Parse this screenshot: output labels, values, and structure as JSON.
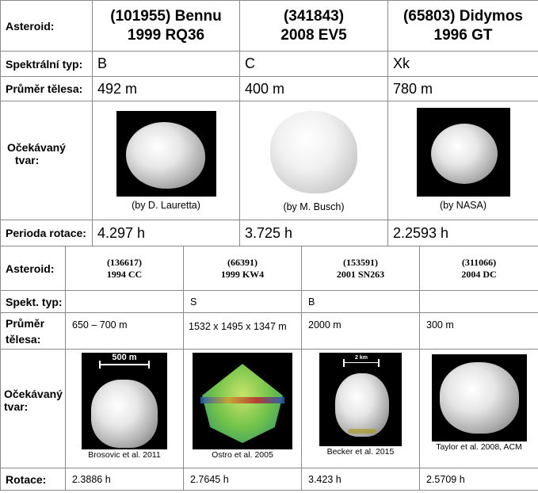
{
  "top_table": {
    "row_labels": {
      "asteroid": "Asteroid:",
      "spectral": "Spektrální typ:",
      "diameter": "Průměr tělesa:",
      "shape": [
        "Očekávaný",
        "tvar:"
      ],
      "rotation": "Perioda rotace:"
    },
    "asteroids": [
      {
        "number": "(101955) Bennu",
        "designation": "1999 RQ36",
        "spectral": "B",
        "diameter": "492 m",
        "credit": "(by D. Lauretta)",
        "rotation": "4.297 h"
      },
      {
        "number": "(341843)",
        "designation": "2008 EV5",
        "spectral": "C",
        "diameter": "400 m",
        "credit": "(by M. Busch)",
        "rotation": "3.725 h"
      },
      {
        "number": "(65803) Didymos",
        "designation": "1996 GT",
        "spectral": "Xk",
        "diameter": "780 m",
        "credit": "(by NASA)",
        "rotation": "2.2593 h"
      }
    ]
  },
  "bottom_table": {
    "row_labels": {
      "asteroid": "Asteroid:",
      "spectral": "Spekt. typ:",
      "diameter": [
        "Průměr",
        "tělesa:"
      ],
      "shape": [
        "Očekávaný",
        "tvar:"
      ],
      "rotation": "Rotace:"
    },
    "asteroids": [
      {
        "number": "(136617)",
        "designation": "1994 CC",
        "spectral": "",
        "diameter": "650 – 700 m",
        "credit": "Brosovic et al. 2011",
        "scale": "500 m",
        "rotation": "2.3886 h"
      },
      {
        "number": "(66391)",
        "designation": "1999 KW4",
        "spectral": "S",
        "diameter": "1532 x 1495 x 1347 m",
        "credit": "Ostro et al. 2005",
        "rotation": "2.7645 h"
      },
      {
        "number": "(153591)",
        "designation": "2001 SN263",
        "spectral": "B",
        "diameter": "2000 m",
        "credit": "Becker et al. 2015",
        "scale": "2 km",
        "rotation": "3.423 h"
      },
      {
        "number": "(311066)",
        "designation": "2004 DC",
        "spectral": "",
        "diameter": "300 m",
        "credit": "Taylor et al. 2008, ACM",
        "rotation": "2.5709 h"
      }
    ]
  }
}
